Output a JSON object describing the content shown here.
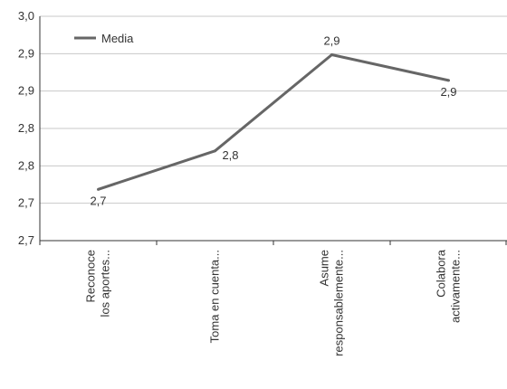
{
  "chart_data": {
    "type": "line",
    "title": "",
    "xlabel": "",
    "ylabel": "",
    "y_tick_labels": [
      "3,0",
      "2,9",
      "2,9",
      "2,8",
      "2,8",
      "2,7",
      "2,7"
    ],
    "ylim": [
      2.65,
      3.0
    ],
    "grid": true,
    "legend_position": "top-left",
    "categories": [
      [
        "Reconoce",
        "los aportes..."
      ],
      [
        "Toma en cuenta..."
      ],
      [
        "Asume",
        "responsablemente..."
      ],
      [
        "Colabora",
        "activamente..."
      ]
    ],
    "series": [
      {
        "name": "Media",
        "color": "#666666",
        "values": [
          2.73,
          2.79,
          2.94,
          2.9
        ],
        "data_labels": [
          "2,7",
          "2,8",
          "2,9",
          "2,9"
        ]
      }
    ]
  }
}
